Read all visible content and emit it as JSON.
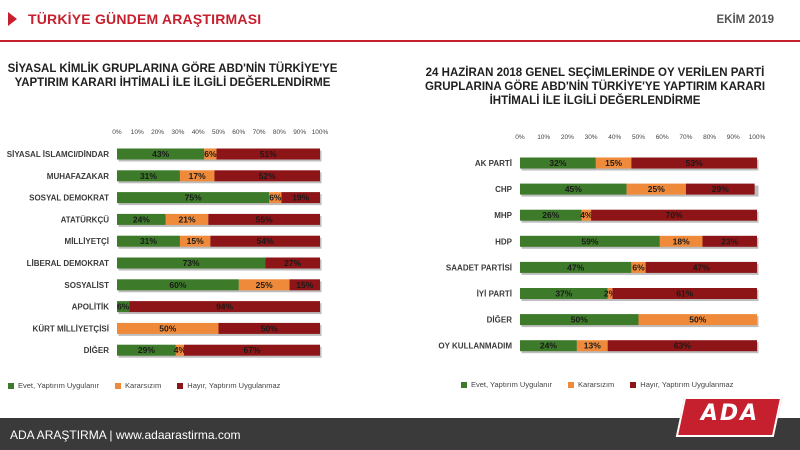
{
  "header": {
    "title": "TÜRKİYE GÜNDEM ARAŞTIRMASI",
    "date": "EKİM 2019"
  },
  "footer": {
    "text": "ADA ARAŞTIRMA |  www.adaarastirma.com",
    "logo_text": "ADA"
  },
  "colors": {
    "evet": "#3d7a2a",
    "kararsiz": "#ee8a3a",
    "hayir": "#8e1517",
    "accent": "#c6202e"
  },
  "chart_data": [
    {
      "type": "bar",
      "stacked": true,
      "orientation": "horizontal",
      "title": "SİYASAL KİMLİK GRUPLARINA GÖRE ABD'NİN TÜRKİYE'YE YAPTIRIM KARARI İHTİMALİ İLE İLGİLİ DEĞERLENDİRME",
      "xlim": [
        0,
        100
      ],
      "ticks": [
        "0%",
        "10%",
        "20%",
        "30%",
        "40%",
        "50%",
        "60%",
        "70%",
        "80%",
        "90%",
        "100%"
      ],
      "legend_position": "bottom",
      "categories": [
        "SİYASAL İSLAMCI/DİNDAR",
        "MUHAFAZAKAR",
        "SOSYAL DEMOKRAT",
        "ATATÜRKÇÜ",
        "MİLLİYETÇİ",
        "LİBERAL DEMOKRAT",
        "SOSYALİST",
        "APOLİTİK",
        "KÜRT MİLLİYETÇİSİ",
        "DİĞER"
      ],
      "series": [
        {
          "name": "Evet, Yaptırım Uygulanır",
          "values": [
            43,
            31,
            75,
            24,
            31,
            73,
            60,
            6,
            0,
            29
          ]
        },
        {
          "name": "Kararsızım",
          "values": [
            6,
            17,
            6,
            21,
            15,
            0,
            25,
            0,
            50,
            4
          ]
        },
        {
          "name": "Hayır, Yaptırım Uygulanmaz",
          "values": [
            51,
            52,
            19,
            55,
            54,
            27,
            15,
            94,
            50,
            67
          ]
        }
      ]
    },
    {
      "type": "bar",
      "stacked": true,
      "orientation": "horizontal",
      "title": "24 HAZİRAN 2018 GENEL SEÇİMLERİNDE OY VERİLEN PARTİ GRUPLARINA GÖRE ABD'NİN TÜRKİYE'YE YAPTIRIM KARARI İHTİMALİ İLE İLGİLİ DEĞERLENDİRME",
      "xlim": [
        0,
        100
      ],
      "ticks": [
        "0%",
        "10%",
        "20%",
        "30%",
        "40%",
        "50%",
        "60%",
        "70%",
        "80%",
        "90%",
        "100%"
      ],
      "legend_position": "bottom",
      "categories": [
        "AK PARTİ",
        "CHP",
        "MHP",
        "HDP",
        "SAADET PARTİSİ",
        "İYİ PARTİ",
        "DİĞER",
        "OY KULLANMADIM"
      ],
      "series": [
        {
          "name": "Evet, Yaptırım Uygulanır",
          "values": [
            32,
            45,
            26,
            59,
            47,
            37,
            50,
            24
          ]
        },
        {
          "name": "Kararsızım",
          "values": [
            15,
            25,
            4,
            18,
            6,
            2,
            50,
            13
          ]
        },
        {
          "name": "Hayır, Yaptırım Uygulanmaz",
          "values": [
            53,
            29,
            70,
            23,
            47,
            61,
            0,
            63
          ]
        }
      ]
    }
  ]
}
